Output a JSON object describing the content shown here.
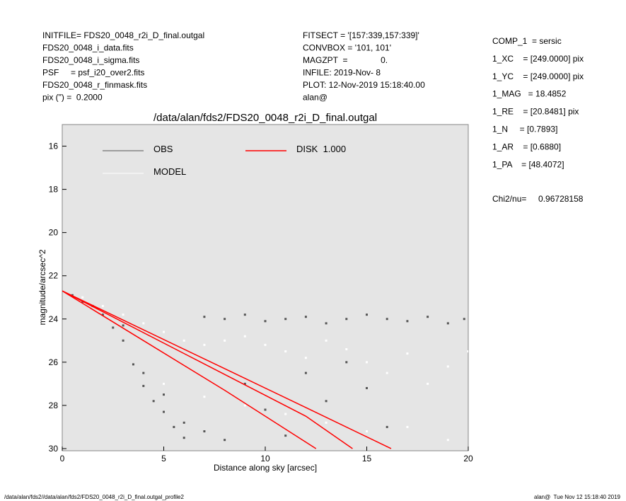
{
  "header": {
    "left": [
      "INITFILE= FDS20_0048_r2i_D_final.outgal",
      "FDS20_0048_i_data.fits",
      "FDS20_0048_i_sigma.fits",
      "PSF     = psf_i20_over2.fits",
      "FDS20_0048_r_finmask.fits",
      "pix (\") =  0.2000"
    ],
    "middle": [
      "FITSECT = '[157:339,157:339]'",
      "CONVBOX = '101, 101'",
      "MAGZPT  =              0.",
      "INFILE: 2019-Nov- 8",
      "PLOT: 12-Nov-2019 15:18:40.00",
      "alan@"
    ],
    "right": [
      "COMP_1  = sersic",
      "1_XC    = [249.0000] pix",
      "1_YC    = [249.0000] pix",
      "1_MAG   = 18.4852",
      "1_RE    = [20.8481] pix",
      "1_N     = [0.7893]",
      "1_AR    = [0.6880]",
      "1_PA    = [48.4072]"
    ],
    "chi": "Chi2/nu=     0.96728158"
  },
  "footer": {
    "left": "/data/alan/fds2//data/alan/fds2/FDS20_0048_r2i_D_final.outgal_profile2",
    "right": "alan@  Tue Nov 12 15:18:40 2019"
  },
  "chart_data": {
    "type": "scatter",
    "title": "/data/alan/fds2/FDS20_0048_r2i_D_final.outgal",
    "xlabel": "Distance along sky [arcsec]",
    "ylabel": "magnitude/arcsec^2",
    "xlim": [
      0,
      20
    ],
    "ylim": [
      30.1,
      15.0
    ],
    "y_inverted": true,
    "xticks": [
      0,
      5,
      10,
      15,
      20
    ],
    "yticks": [
      16,
      18,
      20,
      22,
      24,
      26,
      28,
      30
    ],
    "background": "#e5e5e5",
    "series": [
      {
        "name": "OBS",
        "color": "#555555",
        "kind": "points",
        "x": [
          0.5,
          1,
          1.5,
          2,
          2.5,
          3,
          3.5,
          4,
          4.5,
          5,
          5.5,
          6,
          7,
          8,
          9,
          10,
          11,
          12,
          13,
          14,
          15,
          16,
          17,
          18,
          19,
          19.8,
          3,
          4,
          5,
          6,
          7,
          8,
          9,
          10,
          11,
          12,
          13,
          14,
          15,
          16
        ],
        "values": [
          22.9,
          23.2,
          23.4,
          23.8,
          24.4,
          25,
          26.1,
          27.1,
          27.8,
          28.3,
          29,
          29.5,
          23.9,
          24.0,
          23.8,
          24.1,
          24.0,
          23.9,
          24.2,
          24.0,
          23.8,
          24.0,
          24.1,
          23.9,
          24.2,
          24.0,
          24.3,
          26.5,
          27.5,
          28.8,
          29.2,
          29.6,
          27.0,
          28.2,
          29.4,
          26.5,
          27.8,
          26.0,
          27.2,
          29.0
        ]
      },
      {
        "name": "MODEL",
        "color": "#ffffff",
        "kind": "points",
        "x": [
          1,
          2,
          3,
          4,
          5,
          6,
          7,
          8,
          9,
          10,
          11,
          12,
          13,
          14,
          15,
          16,
          17,
          18,
          19,
          20,
          5,
          7,
          9,
          11,
          13,
          15,
          17,
          19
        ],
        "values": [
          23.0,
          23.4,
          23.8,
          24.2,
          24.6,
          25.0,
          25.2,
          25.0,
          24.8,
          25.2,
          25.5,
          25.8,
          25.0,
          25.4,
          26.0,
          26.5,
          25.6,
          27.0,
          26.2,
          25.5,
          27.0,
          27.6,
          28.0,
          28.4,
          28.8,
          29.2,
          29.0,
          29.6
        ]
      },
      {
        "name": "DISK  1.000",
        "color": "#ff0000",
        "kind": "line",
        "x": [
          0,
          4,
          8,
          12,
          16.2,
          null,
          0,
          4,
          8,
          12.5,
          null,
          0,
          6,
          12,
          14.3
        ],
        "values": [
          22.7,
          24.5,
          26.3,
          28.1,
          30.0,
          null,
          22.7,
          25.0,
          27.3,
          30.0,
          null,
          22.7,
          25.6,
          28.5,
          30.0
        ]
      }
    ]
  }
}
